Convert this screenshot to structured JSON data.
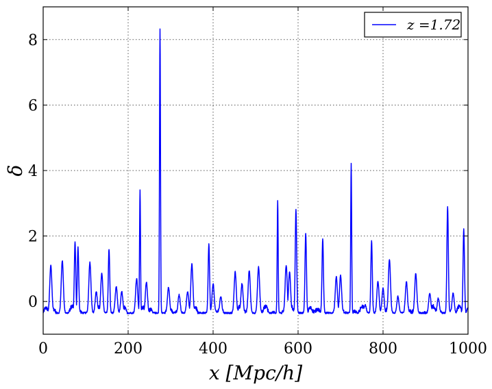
{
  "chart_data": {
    "type": "line",
    "xlabel": "x [Mpc/h]",
    "ylabel": "δ",
    "xlim": [
      0,
      1000
    ],
    "ylim": [
      -1,
      9
    ],
    "xticks": [
      0,
      200,
      400,
      600,
      800,
      1000
    ],
    "yticks": [
      0,
      2,
      4,
      6,
      8
    ],
    "grid": true,
    "legend_position": "top-right",
    "colors": {
      "series": "#0000ff"
    },
    "series": [
      {
        "name": "z =1.72",
        "baseline": -0.35,
        "peaks": [
          [
            18,
            1.1
          ],
          [
            45,
            1.25
          ],
          [
            75,
            1.8
          ],
          [
            82,
            1.65
          ],
          [
            110,
            1.2
          ],
          [
            125,
            0.3
          ],
          [
            138,
            0.85
          ],
          [
            155,
            1.6
          ],
          [
            172,
            0.45
          ],
          [
            185,
            0.3
          ],
          [
            220,
            0.7
          ],
          [
            228,
            3.4
          ],
          [
            243,
            0.6
          ],
          [
            275,
            8.35
          ],
          [
            295,
            0.45
          ],
          [
            320,
            0.2
          ],
          [
            340,
            0.3
          ],
          [
            350,
            1.15
          ],
          [
            390,
            1.75
          ],
          [
            400,
            0.55
          ],
          [
            418,
            0.15
          ],
          [
            452,
            0.9
          ],
          [
            468,
            0.55
          ],
          [
            485,
            0.95
          ],
          [
            507,
            1.05
          ],
          [
            552,
            3.1
          ],
          [
            572,
            1.1
          ],
          [
            580,
            0.9
          ],
          [
            595,
            2.8
          ],
          [
            618,
            2.1
          ],
          [
            658,
            1.9
          ],
          [
            690,
            0.75
          ],
          [
            700,
            0.8
          ],
          [
            725,
            4.2
          ],
          [
            758,
            -0.1
          ],
          [
            773,
            1.85
          ],
          [
            788,
            0.6
          ],
          [
            800,
            0.4
          ],
          [
            815,
            1.3
          ],
          [
            835,
            0.15
          ],
          [
            855,
            0.6
          ],
          [
            877,
            0.85
          ],
          [
            910,
            0.25
          ],
          [
            930,
            0.1
          ],
          [
            952,
            2.9
          ],
          [
            965,
            0.25
          ],
          [
            990,
            2.2
          ],
          [
            1000,
            -0.2
          ]
        ]
      }
    ]
  }
}
